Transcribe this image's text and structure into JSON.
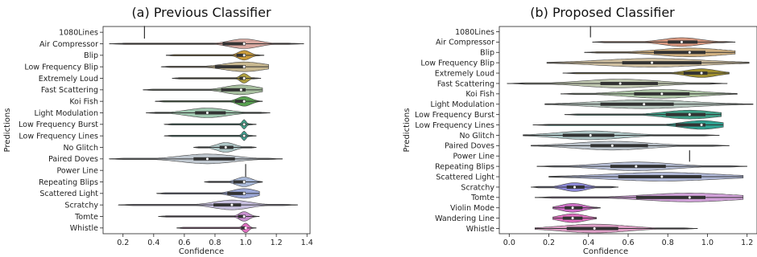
{
  "chart_data": [
    {
      "type": "violin",
      "title": "(a) Previous Classifier",
      "xlabel": "Confidence",
      "ylabel": "Predictions",
      "xlim": [
        0.07,
        1.42
      ],
      "xticks": [
        0.2,
        0.4,
        0.6,
        0.8,
        1.0,
        1.2,
        1.4
      ],
      "categories": [
        "1080Lines",
        "Air Compressor",
        "Blip",
        "Low Frequency Blip",
        "Extremely Loud",
        "Fast Scattering",
        "Koi Fish",
        "Light Modulation",
        "Low Frequency Burst",
        "Low Frequency Lines",
        "No Glitch",
        "Paired Doves",
        "Power Line",
        "Repeating Blips",
        "Scattered Light",
        "Scratchy",
        "Tomte",
        "Whistle"
      ],
      "series": [
        {
          "min": 0.34,
          "q1": 0.34,
          "median": 0.34,
          "q3": 0.34,
          "max": 0.34,
          "color": "#c8c8c8"
        },
        {
          "min": 0.11,
          "q1": 0.85,
          "median": 0.99,
          "q3": 1.0,
          "max": 1.38,
          "color": "#d8a8a0"
        },
        {
          "min": 0.48,
          "q1": 0.94,
          "median": 0.99,
          "q3": 1.0,
          "max": 1.12,
          "color": "#c89a3a"
        },
        {
          "min": 0.45,
          "q1": 0.8,
          "median": 0.99,
          "q3": 1.0,
          "max": 1.15,
          "color": "#c8b890"
        },
        {
          "min": 0.52,
          "q1": 0.96,
          "median": 0.99,
          "q3": 1.0,
          "max": 1.1,
          "color": "#b0a040"
        },
        {
          "min": 0.33,
          "q1": 0.84,
          "median": 0.97,
          "q3": 1.0,
          "max": 1.11,
          "color": "#a8c0a0"
        },
        {
          "min": 0.41,
          "q1": 0.93,
          "median": 0.99,
          "q3": 1.0,
          "max": 1.11,
          "color": "#58a050"
        },
        {
          "min": 0.35,
          "q1": 0.67,
          "median": 0.75,
          "q3": 0.87,
          "max": 1.16,
          "color": "#a0c8b0"
        },
        {
          "min": 0.47,
          "q1": 0.98,
          "median": 0.99,
          "q3": 1.0,
          "max": 1.07,
          "color": "#40a088"
        },
        {
          "min": 0.47,
          "q1": 0.98,
          "median": 0.99,
          "q3": 1.0,
          "max": 1.07,
          "color": "#40a090"
        },
        {
          "min": 0.66,
          "q1": 0.83,
          "median": 0.87,
          "q3": 0.92,
          "max": 1.07,
          "color": "#b0c8c8"
        },
        {
          "min": 0.11,
          "q1": 0.66,
          "median": 0.75,
          "q3": 0.93,
          "max": 1.24,
          "color": "#c0c8d0"
        },
        {
          "min": 1.0,
          "q1": 1.0,
          "median": 1.0,
          "q3": 1.0,
          "max": 1.0,
          "color": "#c8c8c8"
        },
        {
          "min": 0.73,
          "q1": 0.92,
          "median": 0.99,
          "q3": 1.0,
          "max": 1.11,
          "color": "#a8b8d8"
        },
        {
          "min": 0.42,
          "q1": 0.88,
          "median": 0.99,
          "q3": 1.0,
          "max": 1.09,
          "color": "#9ca8d8"
        },
        {
          "min": 0.17,
          "q1": 0.79,
          "median": 0.91,
          "q3": 0.97,
          "max": 1.34,
          "color": "#c8c0e0"
        },
        {
          "min": 0.43,
          "q1": 0.95,
          "median": 0.99,
          "q3": 1.0,
          "max": 1.09,
          "color": "#c890d0"
        },
        {
          "min": 0.55,
          "q1": 0.97,
          "median": 1.0,
          "q3": 1.0,
          "max": 1.07,
          "color": "#e070c0"
        }
      ]
    },
    {
      "type": "violin",
      "title": "(b) Proposed Classifier",
      "xlabel": "Confidence",
      "ylabel": "Predictions",
      "xlim": [
        -0.05,
        1.25
      ],
      "xticks": [
        0.0,
        0.2,
        0.4,
        0.6,
        0.8,
        1.0,
        1.2
      ],
      "categories": [
        "1080Lines",
        "Air Compressor",
        "Blip",
        "Low Frequency Blip",
        "Extremely Loud",
        "Fast Scattering",
        "Koi Fish",
        "Light Modulation",
        "Low Frequency Burst",
        "Low Frequency Lines",
        "No Glitch",
        "Paired Doves",
        "Power Line",
        "Repeating Blips",
        "Scattered Light",
        "Scratchy",
        "Tomte",
        "Violin Mode",
        "Wandering Line",
        "Whistle"
      ],
      "series": [
        {
          "min": 0.41,
          "q1": 0.41,
          "median": 0.41,
          "q3": 0.41,
          "max": 0.41,
          "color": "#c8c8c8"
        },
        {
          "min": 0.42,
          "q1": 0.8,
          "median": 0.87,
          "q3": 0.95,
          "max": 1.14,
          "color": "#d89880"
        },
        {
          "min": 0.38,
          "q1": 0.73,
          "median": 0.91,
          "q3": 0.99,
          "max": 1.14,
          "color": "#d0b080"
        },
        {
          "min": 0.19,
          "q1": 0.57,
          "median": 0.72,
          "q3": 0.97,
          "max": 1.21,
          "color": "#d0c0a0"
        },
        {
          "min": 0.27,
          "q1": 0.88,
          "median": 0.97,
          "q3": 1.0,
          "max": 1.11,
          "color": "#a09030"
        },
        {
          "min": -0.01,
          "q1": 0.46,
          "median": 0.56,
          "q3": 0.75,
          "max": 1.1,
          "color": "#c0c8b0"
        },
        {
          "min": 0.26,
          "q1": 0.63,
          "median": 0.77,
          "q3": 0.91,
          "max": 1.15,
          "color": "#b0c8a8"
        },
        {
          "min": 0.18,
          "q1": 0.46,
          "median": 0.68,
          "q3": 0.83,
          "max": 1.23,
          "color": "#b8c8c0"
        },
        {
          "min": 0.28,
          "q1": 0.79,
          "median": 0.91,
          "q3": 0.99,
          "max": 1.07,
          "color": "#40a088"
        },
        {
          "min": 0.12,
          "q1": 0.84,
          "median": 0.97,
          "q3": 0.99,
          "max": 1.08,
          "color": "#30a090"
        },
        {
          "min": 0.07,
          "q1": 0.27,
          "median": 0.41,
          "q3": 0.53,
          "max": 1.06,
          "color": "#b0c8c8"
        },
        {
          "min": 0.11,
          "q1": 0.41,
          "median": 0.52,
          "q3": 0.7,
          "max": 1.11,
          "color": "#c0c8d0"
        },
        {
          "min": 0.91,
          "q1": 0.91,
          "median": 0.91,
          "q3": 0.91,
          "max": 0.91,
          "color": "#c8c8c8"
        },
        {
          "min": 0.14,
          "q1": 0.51,
          "median": 0.64,
          "q3": 0.79,
          "max": 1.2,
          "color": "#b8c0d8"
        },
        {
          "min": 0.2,
          "q1": 0.55,
          "median": 0.77,
          "q3": 0.97,
          "max": 1.18,
          "color": "#b0b8d8"
        },
        {
          "min": 0.11,
          "q1": 0.29,
          "median": 0.33,
          "q3": 0.38,
          "max": 0.55,
          "color": "#8c88d8"
        },
        {
          "min": 0.13,
          "q1": 0.64,
          "median": 0.91,
          "q3": 0.99,
          "max": 1.18,
          "color": "#d0a0d8"
        },
        {
          "min": 0.22,
          "q1": 0.28,
          "median": 0.32,
          "q3": 0.37,
          "max": 0.46,
          "color": "#d070c8"
        },
        {
          "min": 0.22,
          "q1": 0.27,
          "median": 0.32,
          "q3": 0.37,
          "max": 0.44,
          "color": "#e070c0"
        },
        {
          "min": 0.13,
          "q1": 0.29,
          "median": 0.43,
          "q3": 0.55,
          "max": 0.95,
          "color": "#e0a0c8"
        }
      ]
    }
  ]
}
